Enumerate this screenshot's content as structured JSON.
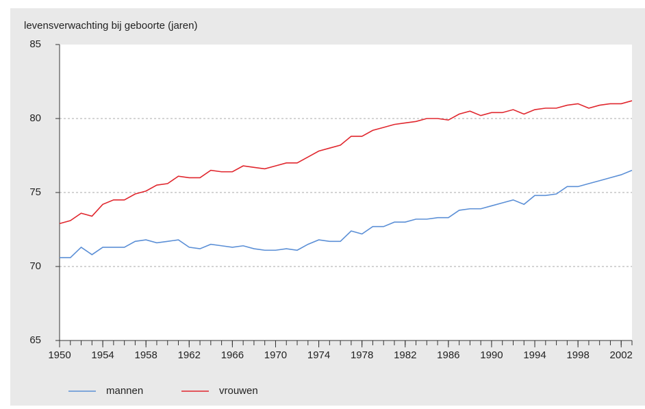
{
  "chart_data": {
    "type": "line",
    "ylabel": "levensverwachting bij geboorte (jaren)",
    "x": [
      1950,
      1951,
      1952,
      1953,
      1954,
      1955,
      1956,
      1957,
      1958,
      1959,
      1960,
      1961,
      1962,
      1963,
      1964,
      1965,
      1966,
      1967,
      1968,
      1969,
      1970,
      1971,
      1972,
      1973,
      1974,
      1975,
      1976,
      1977,
      1978,
      1979,
      1980,
      1981,
      1982,
      1983,
      1984,
      1985,
      1986,
      1987,
      1988,
      1989,
      1990,
      1991,
      1992,
      1993,
      1994,
      1995,
      1996,
      1997,
      1998,
      1999,
      2000,
      2001,
      2002,
      2003
    ],
    "series": [
      {
        "name": "mannen",
        "color": "#5b8fd6",
        "values": [
          70.6,
          70.6,
          71.3,
          70.8,
          71.3,
          71.3,
          71.3,
          71.7,
          71.8,
          71.6,
          71.7,
          71.8,
          71.3,
          71.2,
          71.5,
          71.4,
          71.3,
          71.4,
          71.2,
          71.1,
          71.1,
          71.2,
          71.1,
          71.5,
          71.8,
          71.7,
          71.7,
          72.4,
          72.2,
          72.7,
          72.7,
          73.0,
          73.0,
          73.2,
          73.2,
          73.3,
          73.3,
          73.8,
          73.9,
          73.9,
          74.1,
          74.3,
          74.5,
          74.2,
          74.8,
          74.8,
          74.9,
          75.4,
          75.4,
          75.6,
          75.8,
          76.0,
          76.2,
          76.5
        ]
      },
      {
        "name": "vrouwen",
        "color": "#e0262d",
        "values": [
          72.9,
          73.1,
          73.6,
          73.4,
          74.2,
          74.5,
          74.5,
          74.9,
          75.1,
          75.5,
          75.6,
          76.1,
          76.0,
          76.0,
          76.5,
          76.4,
          76.4,
          76.8,
          76.7,
          76.6,
          76.8,
          77.0,
          77.0,
          77.4,
          77.8,
          78.0,
          78.2,
          78.8,
          78.8,
          79.2,
          79.4,
          79.6,
          79.7,
          79.8,
          80.0,
          80.0,
          79.9,
          80.3,
          80.5,
          80.2,
          80.4,
          80.4,
          80.6,
          80.3,
          80.6,
          80.7,
          80.7,
          80.9,
          81.0,
          80.7,
          80.9,
          81.0,
          81.0,
          81.2
        ]
      }
    ],
    "xlim": [
      1950,
      2003
    ],
    "xticks": [
      1950,
      1954,
      1958,
      1962,
      1966,
      1970,
      1974,
      1978,
      1982,
      1986,
      1990,
      1994,
      1998,
      2002
    ],
    "ylim": [
      65,
      85
    ],
    "yticks": [
      65,
      70,
      75,
      80,
      85
    ],
    "grid": true
  }
}
